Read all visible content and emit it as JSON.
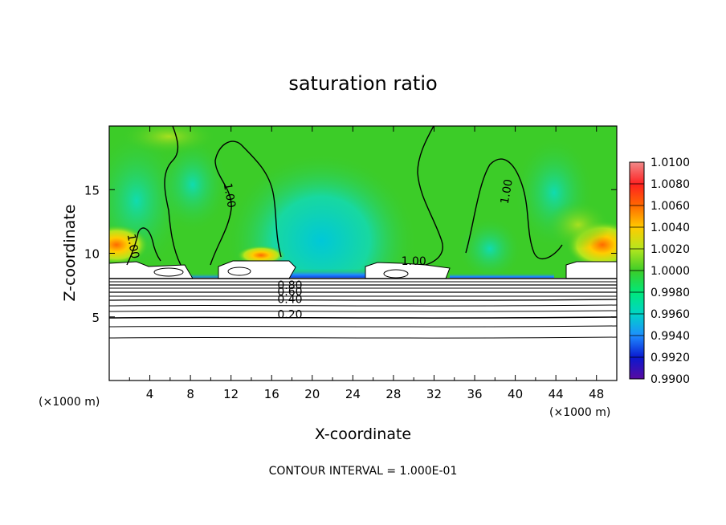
{
  "chart_data": {
    "type": "heatmap",
    "title": "saturation ratio",
    "xlabel": "X-coordinate",
    "ylabel": "Z-coordinate",
    "x_unit_label": "(×1000 m)",
    "y_unit_label": "(×1000 m)",
    "footer": "CONTOUR INTERVAL = 1.000E-01",
    "xlim": [
      0,
      50
    ],
    "ylim": [
      0,
      20
    ],
    "x_ticks": [
      4,
      8,
      12,
      16,
      20,
      24,
      28,
      32,
      36,
      40,
      44,
      48
    ],
    "y_ticks": [
      5,
      10,
      15
    ],
    "colorbar": {
      "ticks": [
        "1.0100",
        "1.0080",
        "1.0060",
        "1.0040",
        "1.0020",
        "1.0000",
        "0.9980",
        "0.9960",
        "0.9940",
        "0.9920",
        "0.9900"
      ],
      "colors": [
        "#f08a8a",
        "#ff2020",
        "#ff6a00",
        "#ffcc00",
        "#b4e61e",
        "#3ccc28",
        "#00e87a",
        "#00d4c8",
        "#1e8cff",
        "#0a18d0",
        "#5a0aa0"
      ]
    },
    "contour_labels": [
      {
        "text": "1.00",
        "x": 11.5,
        "z": 14.5,
        "angle": 80
      },
      {
        "text": "1.00",
        "x": 2.0,
        "z": 10.5,
        "angle": 80
      },
      {
        "text": "1.00",
        "x": 30.0,
        "z": 9.1,
        "angle": 0
      },
      {
        "text": "1.00",
        "x": 39.5,
        "z": 14.8,
        "angle": -80
      },
      {
        "text": "0.80",
        "x": 17.8,
        "z": 7.2,
        "angle": 0
      },
      {
        "text": "0.60",
        "x": 17.8,
        "z": 6.7,
        "angle": 0
      },
      {
        "text": "0.40",
        "x": 17.8,
        "z": 6.1,
        "angle": 0
      },
      {
        "text": "0.20",
        "x": 17.8,
        "z": 4.9,
        "angle": 0
      }
    ]
  }
}
